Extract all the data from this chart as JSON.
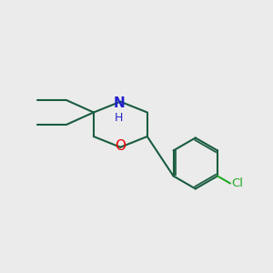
{
  "bg_color": "#ebebeb",
  "bond_color": "#1a5c40",
  "bond_width": 1.5,
  "o_color": "#ee0000",
  "n_color": "#2222cc",
  "cl_color": "#22aa22",
  "o_label": "O",
  "n_label": "N",
  "h_label": "H",
  "cl_label": "Cl",
  "figsize": [
    3.0,
    3.0
  ],
  "dpi": 100
}
